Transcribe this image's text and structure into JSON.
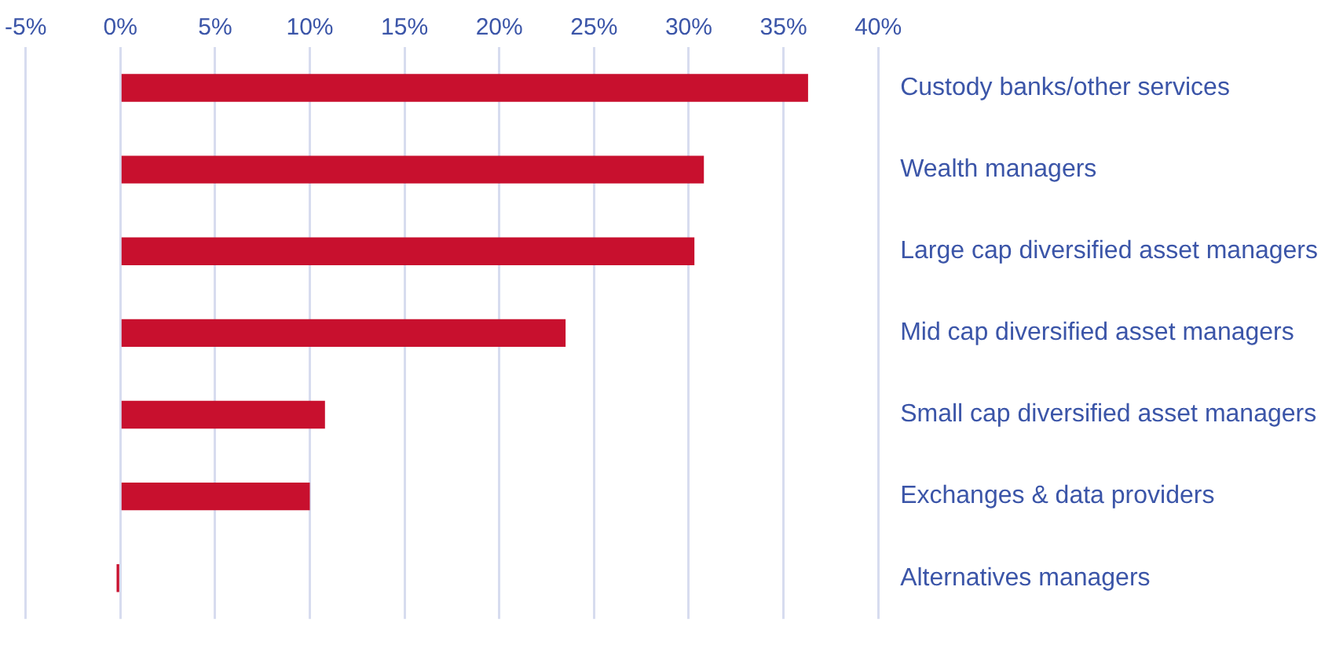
{
  "chart_data": {
    "type": "bar",
    "orientation": "horizontal",
    "categories": [
      "Custody banks/other services",
      "Wealth managers",
      "Large cap diversified asset managers",
      "Mid cap diversified asset managers",
      "Small cap diversified asset managers",
      "Exchanges & data providers",
      "Alternatives managers"
    ],
    "values": [
      36.3,
      30.8,
      30.3,
      23.5,
      10.8,
      10.0,
      -0.2
    ],
    "color": "#c8102e",
    "xlim": [
      -5,
      40
    ],
    "xticks": [
      {
        "value": -5,
        "label": "-5%"
      },
      {
        "value": 0,
        "label": "0%"
      },
      {
        "value": 5,
        "label": "5%"
      },
      {
        "value": 10,
        "label": "10%"
      },
      {
        "value": 15,
        "label": "15%"
      },
      {
        "value": 20,
        "label": "20%"
      },
      {
        "value": 25,
        "label": "25%"
      },
      {
        "value": 30,
        "label": "30%"
      },
      {
        "value": 35,
        "label": "35%"
      },
      {
        "value": 40,
        "label": "40%"
      }
    ],
    "grid": "x",
    "legend": false
  }
}
